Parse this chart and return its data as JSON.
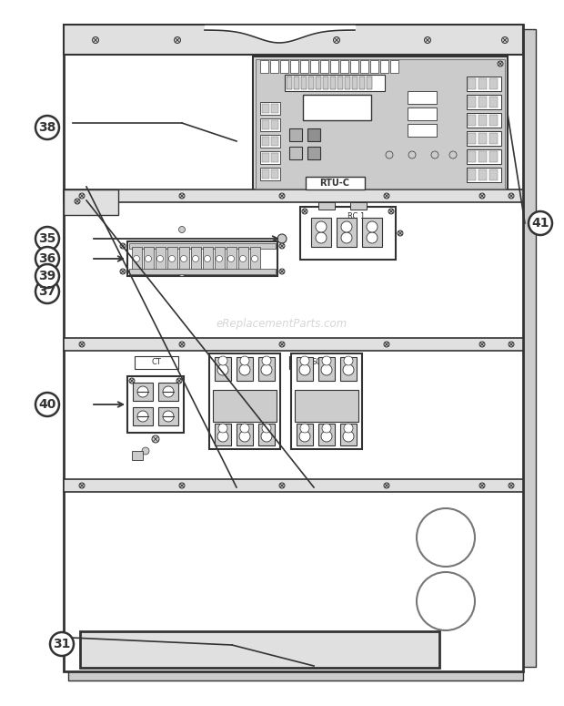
{
  "bg_color": "#ffffff",
  "line_color": "#777777",
  "dark_line": "#333333",
  "light_gray": "#cccccc",
  "med_gray": "#999999",
  "panel_fill": "#e0e0e0",
  "pcb_fill": "#d0d0d0",
  "white": "#ffffff",
  "watermark": "eReplacementParts.com",
  "label_nums": [
    "31",
    "35",
    "36",
    "37",
    "38",
    "39",
    "40",
    "41"
  ]
}
